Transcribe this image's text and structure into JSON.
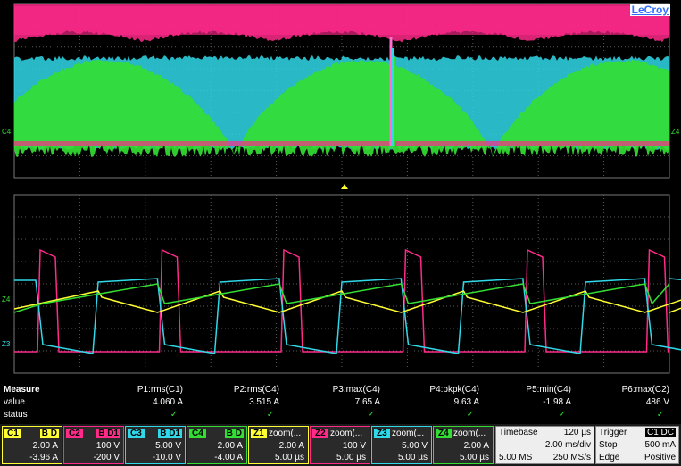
{
  "brand": "LeCroy",
  "colors": {
    "c1": "#ffff33",
    "c2": "#ff2a8a",
    "c3": "#30d8e8",
    "c4": "#33dd33",
    "grid": "#5a5a5a"
  },
  "markers": {
    "top_left": "C4",
    "top_right": "Z4",
    "mid_left": "Z4",
    "low_left": "Z3"
  },
  "measure": {
    "title": "Measure",
    "row_labels": [
      "value",
      "status"
    ],
    "cols": [
      {
        "name": "P1:rms(C1)",
        "value": "4.060 A",
        "status": "✓"
      },
      {
        "name": "P2:rms(C4)",
        "value": "3.515 A",
        "status": "✓"
      },
      {
        "name": "P3:max(C4)",
        "value": "7.65 A",
        "status": "✓"
      },
      {
        "name": "P4:pkpk(C4)",
        "value": "9.63 A",
        "status": "✓"
      },
      {
        "name": "P5:min(C4)",
        "value": "-1.98 A",
        "status": "✓"
      },
      {
        "name": "P6:max(C2)",
        "value": "486 V",
        "status": "✓"
      }
    ]
  },
  "channels": [
    {
      "tag": "C1",
      "flags": "B D",
      "title": "",
      "l1": "2.00 A",
      "l2": "-3.96 A",
      "color": "#ffff33"
    },
    {
      "tag": "C2",
      "flags": "B D1",
      "title": "",
      "l1": "100 V",
      "l2": "-200 V",
      "color": "#ff2a8a"
    },
    {
      "tag": "C3",
      "flags": "B D1",
      "title": "",
      "l1": "5.00 V",
      "l2": "-10.0 V",
      "color": "#30d8e8"
    },
    {
      "tag": "C4",
      "flags": "B D",
      "title": "",
      "l1": "2.00 A",
      "l2": "-4.00 A",
      "color": "#33dd33"
    },
    {
      "tag": "Z1",
      "flags": "",
      "title": "zoom(...",
      "l1": "2.00 A",
      "l2": "5.00 µs",
      "color": "#ffff33"
    },
    {
      "tag": "Z2",
      "flags": "",
      "title": "zoom(...",
      "l1": "100 V",
      "l2": "5.00 µs",
      "color": "#ff2a8a"
    },
    {
      "tag": "Z3",
      "flags": "",
      "title": "zoom(...",
      "l1": "5.00 V",
      "l2": "5.00 µs",
      "color": "#30d8e8"
    },
    {
      "tag": "Z4",
      "flags": "",
      "title": "zoom(...",
      "l1": "2.00 A",
      "l2": "5.00 µs",
      "color": "#33dd33"
    }
  ],
  "timebase": {
    "label": "Timebase",
    "value": "120 µs",
    "rate": "2.00 ms/div",
    "samples": "5.00 MS",
    "sample_rate": "250 MS/s"
  },
  "trigger": {
    "label": "Trigger",
    "flags": "C1 DC",
    "mode": "Stop",
    "level": "500 mA",
    "type": "Edge",
    "slope": "Positive"
  }
}
